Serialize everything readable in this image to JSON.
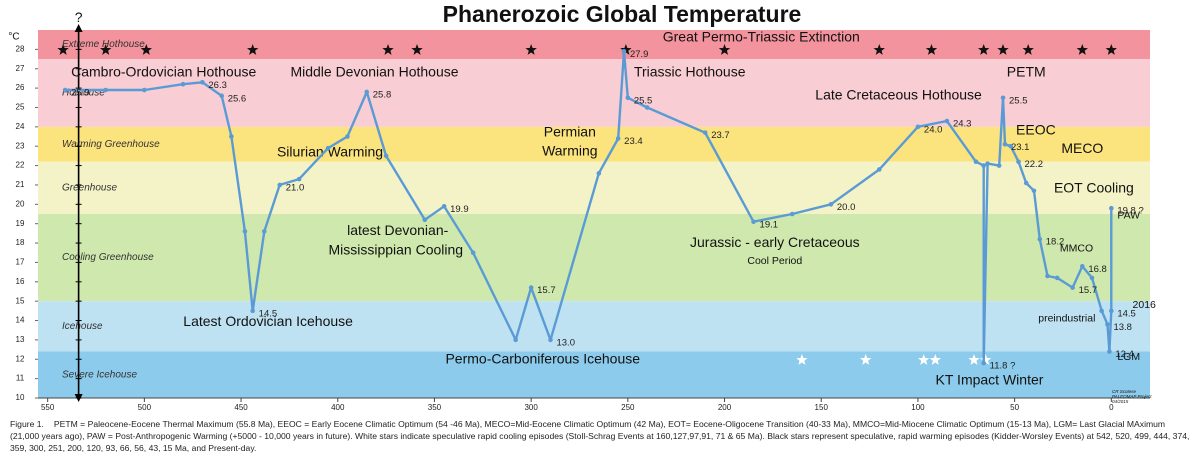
{
  "chart_data": {
    "type": "line",
    "title": "Phanerozoic Global Temperature",
    "y_unit": "°C",
    "xlim": [
      555,
      -20
    ],
    "ylim": [
      10,
      29
    ],
    "xticks": [
      550,
      500,
      450,
      400,
      350,
      300,
      250,
      200,
      150,
      100,
      50,
      0
    ],
    "yticks": [
      10,
      11,
      12,
      13,
      14,
      15,
      16,
      17,
      18,
      19,
      20,
      21,
      22,
      23,
      24,
      25,
      26,
      27,
      28
    ],
    "bands": [
      {
        "name": "Extreme Hothouse",
        "range": [
          27.5,
          29
        ],
        "color": "#f2939e"
      },
      {
        "name": "Hothouse",
        "range": [
          24,
          27.5
        ],
        "color": "#f8cdd3"
      },
      {
        "name": "Warming Greenhouse",
        "range": [
          22.2,
          24
        ],
        "color": "#fbe37e"
      },
      {
        "name": "Greenhouse",
        "range": [
          19.5,
          22.2
        ],
        "color": "#f4f3c8"
      },
      {
        "name": "Cooling Greenhouse",
        "range": [
          15,
          19.5
        ],
        "color": "#cfe8ad"
      },
      {
        "name": "Icehouse",
        "range": [
          12.4,
          15
        ],
        "color": "#bfe2f3"
      },
      {
        "name": "Severe Icehouse",
        "range": [
          10,
          12.4
        ],
        "color": "#8ccbec"
      }
    ],
    "series": [
      {
        "name": "Global temperature",
        "color": "#5b9bd5",
        "x": [
          541,
          520,
          500,
          480,
          470,
          460,
          455,
          448,
          444,
          438,
          430,
          420,
          405,
          395,
          385,
          375,
          355,
          345,
          330,
          308,
          300,
          290,
          265,
          255,
          252,
          250,
          240,
          210,
          185,
          165,
          145,
          120,
          100,
          85,
          70,
          66,
          66,
          64,
          58,
          56,
          55,
          52,
          48,
          44,
          40,
          37,
          33,
          28,
          20,
          15,
          10,
          5,
          2,
          1,
          0,
          0
        ],
        "values": [
          25.9,
          25.9,
          25.9,
          26.2,
          26.3,
          25.6,
          23.5,
          18.6,
          14.5,
          18.6,
          21.0,
          21.3,
          22.9,
          23.5,
          25.8,
          22.5,
          19.2,
          19.9,
          17.5,
          13.0,
          15.7,
          13.0,
          21.6,
          23.4,
          27.9,
          25.5,
          25.0,
          23.7,
          19.1,
          19.5,
          20.0,
          21.8,
          24.0,
          24.3,
          22.2,
          22.0,
          11.8,
          22.1,
          22.0,
          25.5,
          23.1,
          23.0,
          22.2,
          21.1,
          20.7,
          18.2,
          16.3,
          16.2,
          15.7,
          16.8,
          16.2,
          14.5,
          13.8,
          12.4,
          14.5,
          19.8
        ],
        "value_labels": [
          "25.9",
          null,
          null,
          null,
          "26.3",
          "25.6",
          null,
          null,
          "14.5",
          null,
          "21.0",
          null,
          null,
          null,
          "25.8",
          null,
          null,
          "19.9",
          null,
          null,
          "15.7",
          "13.0",
          null,
          "23.4",
          "27.9",
          "25.5",
          null,
          "23.7",
          "19.1",
          null,
          "20.0",
          null,
          "24.0",
          "24.3",
          null,
          null,
          "11.8 ?",
          null,
          null,
          "25.5",
          "23.1",
          null,
          "22.2",
          null,
          null,
          "18.2",
          null,
          null,
          "15.7",
          "16.8",
          null,
          null,
          "13.8",
          "12.4",
          "14.5",
          "19.8 ?"
        ]
      }
    ],
    "warming_events": [
      542,
      520,
      499,
      444,
      374,
      359,
      300,
      251,
      200,
      120,
      93,
      66,
      56,
      43,
      15,
      0
    ],
    "cooling_events": [
      160,
      127,
      97,
      91,
      71,
      65
    ],
    "annotations": [
      {
        "text": "?",
        "x": 534,
        "y": 29.6
      },
      {
        "text": "Great Permo-Triassic Extinction",
        "x": 181,
        "y": 28.6
      },
      {
        "text": "Cambro-Ordovician Hothouse",
        "x": 490,
        "y": 26.8
      },
      {
        "text": "Middle Devonian Hothouse",
        "x": 381,
        "y": 26.8
      },
      {
        "text": "Triassic Hothouse",
        "x": 218,
        "y": 26.8
      },
      {
        "text": "PETM",
        "x": 44,
        "y": 26.8
      },
      {
        "text": "Late Cretaceous Hothouse",
        "x": 110,
        "y": 25.6
      },
      {
        "text": "EEOC",
        "x": 39,
        "y": 23.8
      },
      {
        "text": "MECO",
        "x": 15,
        "y": 22.85
      },
      {
        "text": "Silurian Warming",
        "x": 404,
        "y": 22.65
      },
      {
        "text": "Permian",
        "x": 280,
        "y": 23.7
      },
      {
        "text": "Warming",
        "x": 280,
        "y": 22.7
      },
      {
        "text": "EOT Cooling",
        "x": 9,
        "y": 20.8
      },
      {
        "text": "latest Devonian-",
        "x": 369,
        "y": 18.6
      },
      {
        "text": "Mississippian Cooling",
        "x": 370,
        "y": 17.6
      },
      {
        "text": "Jurassic - early Cretaceous",
        "x": 174,
        "y": 18.0
      },
      {
        "text": "Cool Period",
        "x": 174,
        "y": 17.05
      },
      {
        "text": "MMCO",
        "x": 18,
        "y": 17.7
      },
      {
        "text": "Latest Ordovician Icehouse",
        "x": 436,
        "y": 13.9
      },
      {
        "text": "Permo-Carboniferous Icehouse",
        "x": 294,
        "y": 11.96
      },
      {
        "text": "KT Impact Winter",
        "x": 63,
        "y": 10.9
      },
      {
        "text": "preindustrial",
        "x": 23,
        "y": 14.1
      },
      {
        "text": "2016",
        "x": -17,
        "y": 14.8
      },
      {
        "text": "PAW",
        "x": -9,
        "y": 19.4
      },
      {
        "text": "LGM",
        "x": -9,
        "y": 12.1
      }
    ],
    "credit": [
      "CR Scotese",
      "PALEOMAP Project",
      "04/2015"
    ]
  },
  "caption": {
    "label": "Figure 1.",
    "text": "PETM = Paleocene-Eocene Thermal Maximum (55.8 Ma), EEOC = Early Eocene Climatic Optimum (54 -46 Ma), MECO=Mid-Eocene Climatic Optimum (42 Ma), EOT= Eocene-Oligocene Transition (40-33 Ma), MMCO=Mid-Miocene Climatic Optimum (15-13 Ma), LGM= Last Glacial MAximum (21,000 years ago), PAW = Post-Anthropogenic Warming (+5000 - 10,000 years in future). White stars indicate speculative rapid cooling episodes (Stoll-Schrag Events at 160,127,97,91, 71 & 65 Ma). Black stars represent speculative, rapid warming episodes (Kidder-Worsley Events) at 542, 520, 499, 444, 374, 359, 300, 251, 200, 120, 93, 66, 56, 43, 15 Ma, and Present-day."
  }
}
